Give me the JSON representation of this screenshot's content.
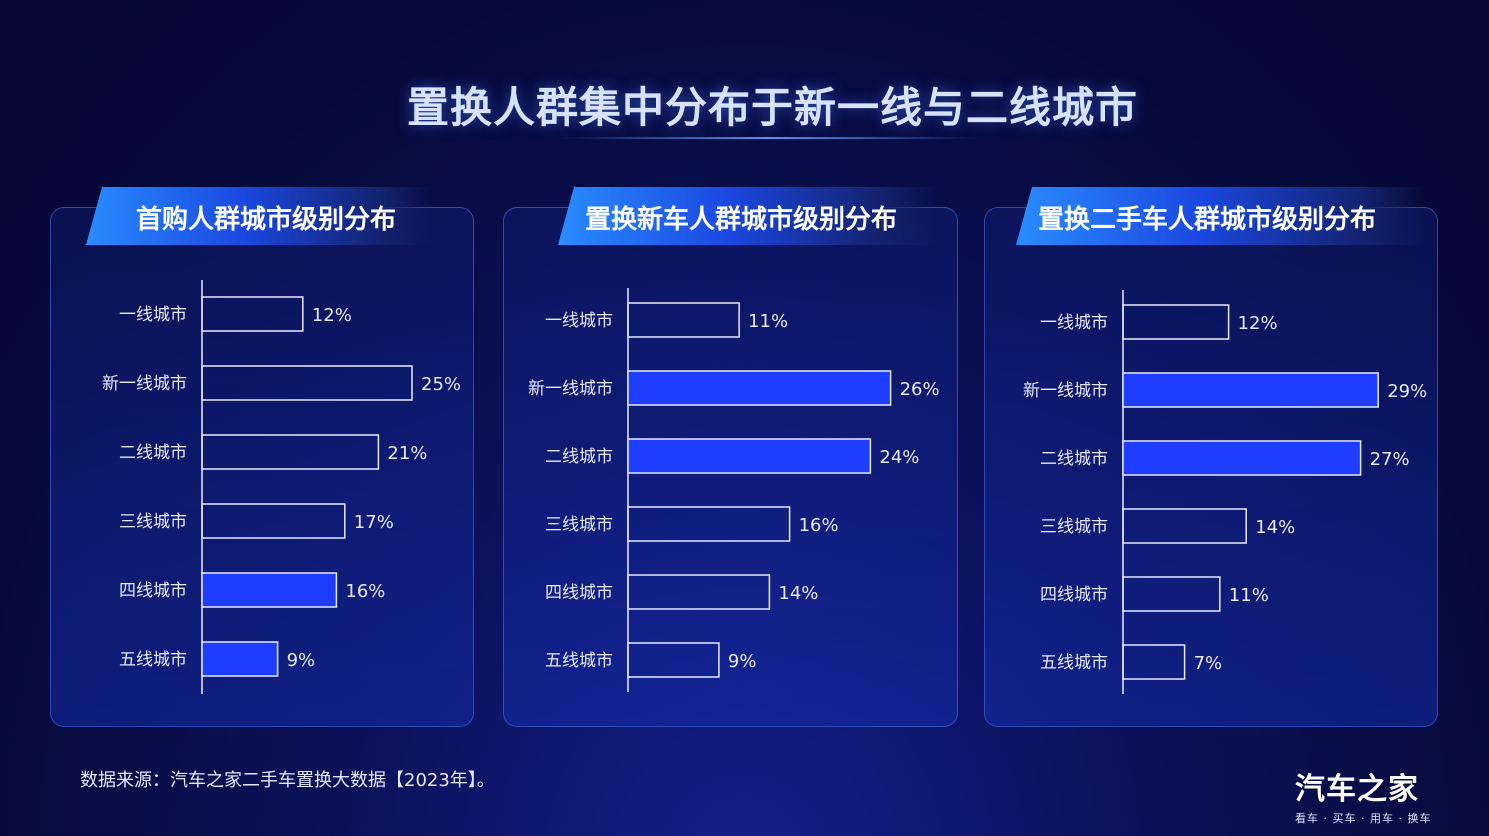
{
  "title": "置换人群集中分布于新一线与二线城市",
  "footnote": "数据来源：汽车之家二手车置换大数据【2023年】。",
  "logo": {
    "name": "汽车之家",
    "tagline": "看车 · 买车 · 用车 · 换车"
  },
  "colors": {
    "highlight": "#1f3dff",
    "outline": "#e6eaff",
    "background": "#060a3a"
  },
  "chart_data": [
    {
      "type": "bar",
      "title": "首购人群城市级别分布",
      "categories": [
        "一线城市",
        "新一线城市",
        "二线城市",
        "三线城市",
        "四线城市",
        "五线城市"
      ],
      "values": [
        12,
        25,
        21,
        17,
        16,
        9
      ],
      "value_labels": [
        "12%",
        "25%",
        "21%",
        "17%",
        "16%",
        "9%"
      ],
      "highlighted": [
        false,
        false,
        false,
        false,
        true,
        true
      ],
      "orientation": "horizontal",
      "unit": "%"
    },
    {
      "type": "bar",
      "title": "置换新车人群城市级别分布",
      "categories": [
        "一线城市",
        "新一线城市",
        "二线城市",
        "三线城市",
        "四线城市",
        "五线城市"
      ],
      "values": [
        11,
        26,
        24,
        16,
        14,
        9
      ],
      "value_labels": [
        "11%",
        "26%",
        "24%",
        "16%",
        "14%",
        "9%"
      ],
      "highlighted": [
        false,
        true,
        true,
        false,
        false,
        false
      ],
      "orientation": "horizontal",
      "unit": "%"
    },
    {
      "type": "bar",
      "title": "置换二手车人群城市级别分布",
      "categories": [
        "一线城市",
        "新一线城市",
        "二线城市",
        "三线城市",
        "四线城市",
        "五线城市"
      ],
      "values": [
        12,
        29,
        27,
        14,
        11,
        7
      ],
      "value_labels": [
        "12%",
        "29%",
        "27%",
        "14%",
        "11%",
        "7%"
      ],
      "highlighted": [
        false,
        true,
        true,
        false,
        false,
        false
      ],
      "orientation": "horizontal",
      "unit": "%"
    }
  ]
}
